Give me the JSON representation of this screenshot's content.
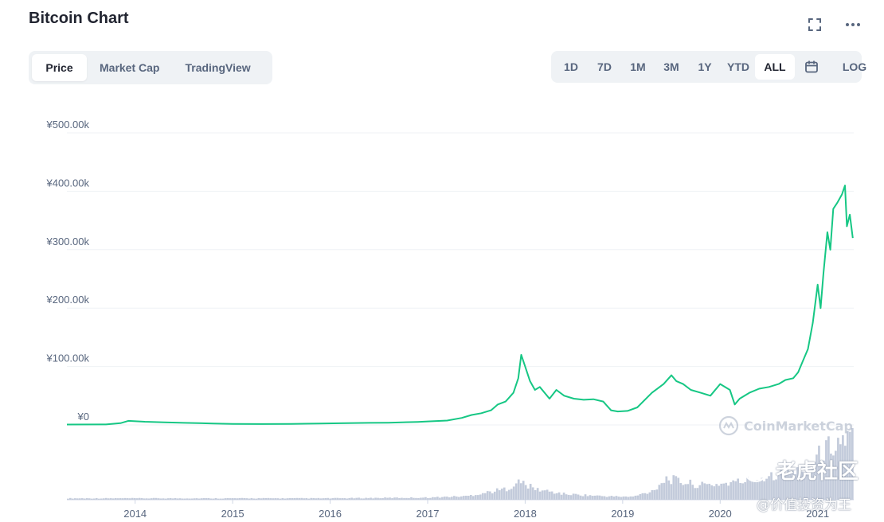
{
  "header": {
    "title": "Bitcoin Chart"
  },
  "tabs": [
    {
      "label": "Price",
      "active": true
    },
    {
      "label": "Market Cap",
      "active": false
    },
    {
      "label": "TradingView",
      "active": false
    }
  ],
  "ranges": [
    {
      "label": "1D",
      "active": false
    },
    {
      "label": "7D",
      "active": false
    },
    {
      "label": "1M",
      "active": false
    },
    {
      "label": "3M",
      "active": false
    },
    {
      "label": "1Y",
      "active": false
    },
    {
      "label": "YTD",
      "active": false
    },
    {
      "label": "ALL",
      "active": true
    }
  ],
  "toolbar": {
    "log_label": "LOG",
    "calendar_icon": "calendar-icon",
    "fullscreen_icon": "fullscreen-icon",
    "more_icon": "more-icon"
  },
  "watermarks": {
    "brand": "CoinMarketCap",
    "community": "老虎社区",
    "author": "@价值投资为王"
  },
  "colors": {
    "price_line": "#16c784",
    "volume": "#c3cbdb",
    "grid": "#eff2f5",
    "axis_text": "#58667e"
  },
  "chart_data": {
    "type": "line",
    "title": "",
    "xlabel": "",
    "ylabel": "",
    "ylim": [
      0,
      500000
    ],
    "yticks": [
      {
        "value": 0,
        "label": "¥0"
      },
      {
        "value": 100000,
        "label": "¥100.00k"
      },
      {
        "value": 200000,
        "label": "¥200.00k"
      },
      {
        "value": 300000,
        "label": "¥300.00k"
      },
      {
        "value": 400000,
        "label": "¥400.00k"
      },
      {
        "value": 500000,
        "label": "¥500.00k"
      }
    ],
    "xlim": [
      2013.3,
      2021.37
    ],
    "xticks": [
      {
        "value": 2014,
        "label": "2014"
      },
      {
        "value": 2015,
        "label": "2015"
      },
      {
        "value": 2016,
        "label": "2016"
      },
      {
        "value": 2017,
        "label": "2017"
      },
      {
        "value": 2018,
        "label": "2018"
      },
      {
        "value": 2019,
        "label": "2019"
      },
      {
        "value": 2020,
        "label": "2020"
      },
      {
        "value": 2021,
        "label": "2021"
      }
    ],
    "series": [
      {
        "x": [
          2013.3,
          2013.7,
          2013.85,
          2013.93,
          2014.1,
          2014.3,
          2014.5,
          2014.8,
          2015.0,
          2015.3,
          2015.6,
          2015.9,
          2016.1,
          2016.4,
          2016.6,
          2016.9,
          2017.0,
          2017.2,
          2017.35,
          2017.45,
          2017.55,
          2017.65,
          2017.72,
          2017.8,
          2017.88,
          2017.93,
          2017.96,
          2018.0,
          2018.05,
          2018.1,
          2018.15,
          2018.25,
          2018.32,
          2018.4,
          2018.5,
          2018.6,
          2018.7,
          2018.8,
          2018.88,
          2018.95,
          2019.05,
          2019.15,
          2019.3,
          2019.42,
          2019.5,
          2019.55,
          2019.62,
          2019.7,
          2019.8,
          2019.9,
          2020.0,
          2020.1,
          2020.15,
          2020.2,
          2020.3,
          2020.4,
          2020.5,
          2020.6,
          2020.67,
          2020.75,
          2020.8,
          2020.85,
          2020.9,
          2020.95,
          2021.0,
          2021.03,
          2021.06,
          2021.1,
          2021.13,
          2021.16,
          2021.2,
          2021.25,
          2021.28,
          2021.3,
          2021.33,
          2021.36
        ],
        "values": [
          700,
          800,
          3000,
          7000,
          5500,
          4500,
          3500,
          2500,
          1800,
          1500,
          1600,
          2500,
          2800,
          3500,
          3800,
          5200,
          6000,
          7500,
          12000,
          17000,
          20000,
          25000,
          35000,
          40000,
          55000,
          80000,
          120000,
          100000,
          75000,
          60000,
          65000,
          45000,
          60000,
          50000,
          45000,
          43000,
          44000,
          40000,
          25000,
          23000,
          24000,
          30000,
          55000,
          70000,
          85000,
          75000,
          70000,
          60000,
          55000,
          50000,
          70000,
          60000,
          35000,
          45000,
          55000,
          62000,
          65000,
          70000,
          77000,
          80000,
          90000,
          110000,
          130000,
          175000,
          240000,
          200000,
          260000,
          330000,
          300000,
          370000,
          380000,
          395000,
          410000,
          340000,
          360000,
          320000
        ]
      }
    ],
    "volume": {
      "x": [
        2013.3,
        2014.0,
        2015.0,
        2016.0,
        2017.0,
        2017.4,
        2017.8,
        2017.95,
        2018.1,
        2018.4,
        2018.8,
        2019.1,
        2019.3,
        2019.45,
        2019.6,
        2019.8,
        2020.0,
        2020.2,
        2020.4,
        2020.6,
        2020.8,
        2020.95,
        2021.05,
        2021.15,
        2021.25,
        2021.36
      ],
      "values": [
        0.02,
        0.02,
        0.02,
        0.02,
        0.03,
        0.05,
        0.15,
        0.25,
        0.15,
        0.08,
        0.05,
        0.04,
        0.12,
        0.3,
        0.25,
        0.2,
        0.22,
        0.25,
        0.3,
        0.38,
        0.4,
        0.55,
        0.65,
        0.78,
        0.82,
        0.9
      ]
    }
  }
}
